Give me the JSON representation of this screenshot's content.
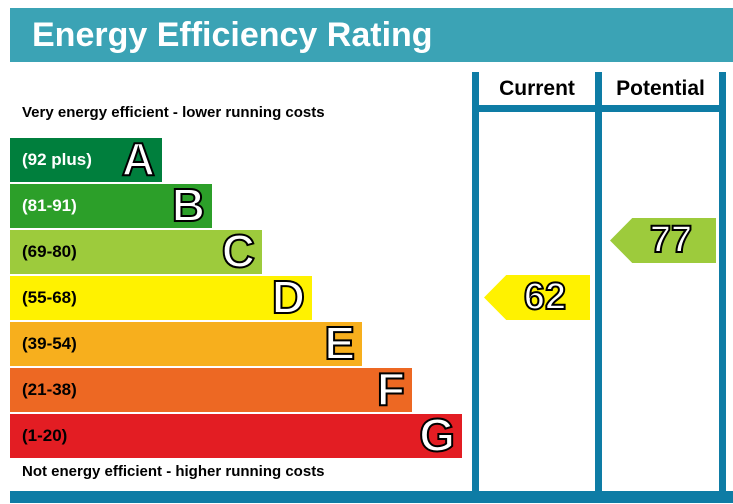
{
  "title": "Energy Efficiency Rating",
  "captions": {
    "top": "Very energy efficient - lower running costs",
    "bottom": "Not energy efficient - higher running costs"
  },
  "columns": {
    "current": "Current",
    "potential": "Potential"
  },
  "colors": {
    "title_bar": "#3ba3b5",
    "frame": "#0e7ca5",
    "current_arrow": "#fff200",
    "potential_arrow": "#9dcb3c"
  },
  "chart_data": {
    "type": "bar",
    "title": "Energy Efficiency Rating",
    "categories": [
      "A",
      "B",
      "C",
      "D",
      "E",
      "F",
      "G"
    ],
    "bands": [
      {
        "letter": "A",
        "range_label": "(92 plus)",
        "min": 92,
        "max": 100,
        "color": "#007f3d",
        "text_color": "#ffffff"
      },
      {
        "letter": "B",
        "range_label": "(81-91)",
        "min": 81,
        "max": 91,
        "color": "#2c9f29",
        "text_color": "#ffffff"
      },
      {
        "letter": "C",
        "range_label": "(69-80)",
        "min": 69,
        "max": 80,
        "color": "#9dcb3c",
        "text_color": "#000000"
      },
      {
        "letter": "D",
        "range_label": "(55-68)",
        "min": 55,
        "max": 68,
        "color": "#fff200",
        "text_color": "#000000"
      },
      {
        "letter": "E",
        "range_label": "(39-54)",
        "min": 39,
        "max": 54,
        "color": "#f7af1d",
        "text_color": "#000000"
      },
      {
        "letter": "F",
        "range_label": "(21-38)",
        "min": 21,
        "max": 38,
        "color": "#ed6823",
        "text_color": "#000000"
      },
      {
        "letter": "G",
        "range_label": "(1-20)",
        "min": 1,
        "max": 20,
        "color": "#e31d23",
        "text_color": "#000000"
      }
    ],
    "current": {
      "value": 62,
      "band": "D"
    },
    "potential": {
      "value": 77,
      "band": "C"
    }
  }
}
